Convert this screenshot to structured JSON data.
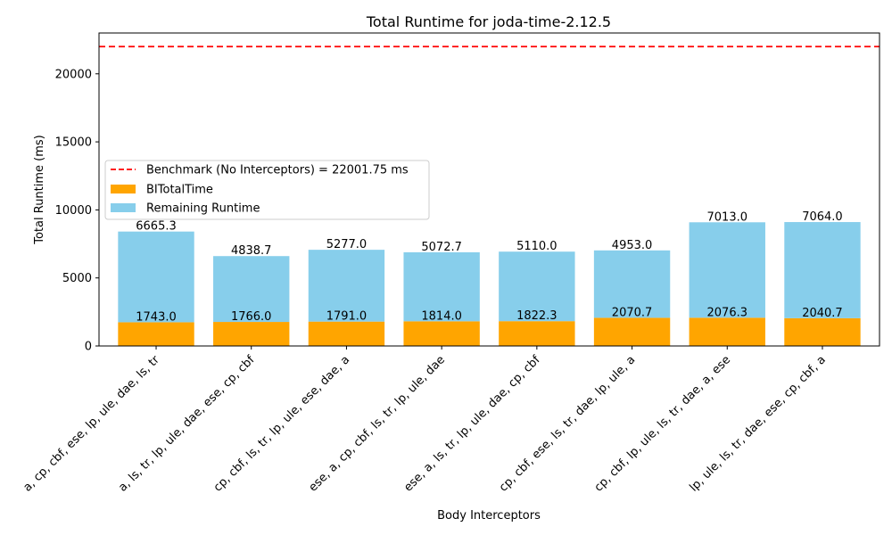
{
  "chart_data": {
    "type": "bar",
    "stacked": true,
    "title": "Total Runtime for joda-time-2.12.5",
    "xlabel": "Body Interceptors",
    "ylabel": "Total Runtime (ms)",
    "ylim": [
      0,
      23000
    ],
    "yticks": [
      0,
      5000,
      10000,
      15000,
      20000
    ],
    "grid": false,
    "legend_position": "center-left",
    "categories": [
      "a, cp, cbf, ese, lp, ule, dae, ls, tr",
      "a, ls, tr, lp, ule, dae, ese, cp, cbf",
      "cp, cbf, ls, tr, lp, ule, ese, dae, a",
      "ese, a, cp, cbf, ls, tr, lp, ule, dae",
      "ese, a, ls, tr, lp, ule, dae, cp, cbf",
      "cp, cbf, ese, ls, tr, dae, lp, ule, a",
      "cp, cbf, lp, ule, ls, tr, dae, a, ese",
      "lp, ule, ls, tr, dae, ese, cp, cbf, a"
    ],
    "series": [
      {
        "name": "BITotalTime",
        "color": "#ffa500",
        "values": [
          1743.0,
          1766.0,
          1791.0,
          1814.0,
          1822.3,
          2070.7,
          2076.3,
          2040.7
        ],
        "labels": [
          "1743.0",
          "1766.0",
          "1791.0",
          "1814.0",
          "1822.3",
          "2070.7",
          "2076.3",
          "2040.7"
        ]
      },
      {
        "name": "Remaining Runtime",
        "color": "#87ceeb",
        "values": [
          6665.3,
          4838.7,
          5277.0,
          5072.7,
          5110.0,
          4953.0,
          7013.0,
          7064.0
        ],
        "labels": [
          "6665.3",
          "4838.7",
          "5277.0",
          "5072.7",
          "5110.0",
          "4953.0",
          "7013.0",
          "7064.0"
        ]
      }
    ],
    "benchmark": {
      "name": "Benchmark (No Interceptors) = 22001.75 ms",
      "value": 22001.75,
      "color": "#ff0000"
    }
  }
}
